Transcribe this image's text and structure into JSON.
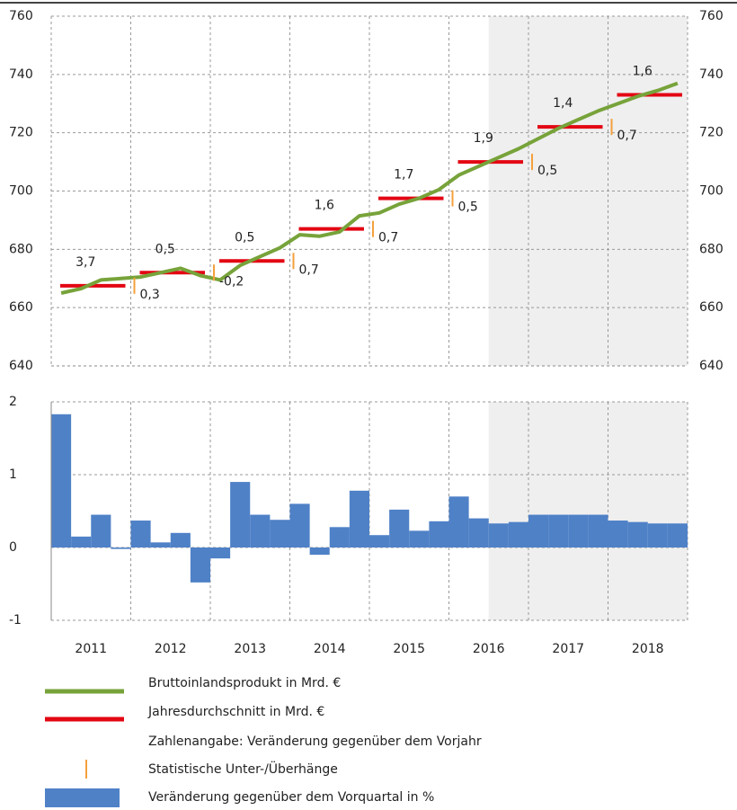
{
  "chart_data": [
    {
      "type": "line",
      "ylim": [
        640,
        760
      ],
      "yticks": [
        640,
        660,
        680,
        700,
        720,
        740,
        760
      ],
      "grid": true,
      "shaded_from_quarter": 22,
      "series": [
        {
          "name": "Bruttoinlandsprodukt in Mrd. €",
          "color": "#77a33a",
          "values": [
            [
              665,
              666.5,
              669.5,
              670
            ],
            [
              670.5,
              672,
              673.5,
              671
            ],
            [
              669.5,
              674.5,
              677.5,
              680.5
            ],
            [
              685,
              684.5,
              686,
              691.5
            ],
            [
              692.5,
              695.5,
              697.5,
              700.5
            ],
            [
              705.5,
              708.5,
              711.5,
              714.5
            ],
            [
              718,
              721.5,
              724.5,
              727.5
            ],
            [
              730,
              732.5,
              734.5,
              737
            ]
          ]
        },
        {
          "name": "Jahresdurchschnitt in Mrd. €",
          "color": "#e30613",
          "values": [
            667.5,
            672,
            676,
            687,
            697.5,
            710,
            722,
            733
          ]
        }
      ],
      "annual_change": {
        "name": "Zahlenangabe: Veränderung gegenüber dem Vorjahr",
        "values": [
          3.7,
          0.5,
          0.5,
          1.6,
          1.7,
          1.9,
          1.4,
          1.6
        ],
        "value_labels": [
          "3,7",
          "0,5",
          "0,5",
          "1,6",
          "1,7",
          "1,9",
          "1,4",
          "1,6"
        ]
      },
      "overhang": {
        "name": "Statistische Unter-/Überhänge",
        "color": "#f5a03c",
        "values": [
          null,
          0.3,
          -0.2,
          0.7,
          0.7,
          0.5,
          0.5,
          0.7
        ],
        "value_labels": [
          null,
          "0,3",
          "-0,2",
          "0,7",
          "0,7",
          "0,5",
          "0,5",
          "0,7"
        ]
      }
    },
    {
      "type": "bar",
      "categories": [
        "2011",
        "2012",
        "2013",
        "2014",
        "2015",
        "2016",
        "2017",
        "2018"
      ],
      "ylim": [
        -1,
        2
      ],
      "yticks": [
        -1,
        0,
        1,
        2
      ],
      "grid": true,
      "shaded_from_quarter": 22,
      "series": [
        {
          "name": "Veränderung gegenüber dem Vorquartal in %",
          "color": "#4f81c7",
          "values": [
            [
              1.83,
              0.15,
              0.45,
              -0.02
            ],
            [
              0.37,
              0.07,
              0.2,
              -0.48
            ],
            [
              -0.15,
              0.9,
              0.45,
              0.38
            ],
            [
              0.6,
              -0.1,
              0.28,
              0.78
            ],
            [
              0.17,
              0.52,
              0.23,
              0.36
            ],
            [
              0.7,
              0.4,
              0.33,
              0.35
            ],
            [
              0.45,
              0.45,
              0.45,
              0.45
            ],
            [
              0.37,
              0.35,
              0.33,
              0.33
            ]
          ]
        }
      ]
    }
  ]
}
